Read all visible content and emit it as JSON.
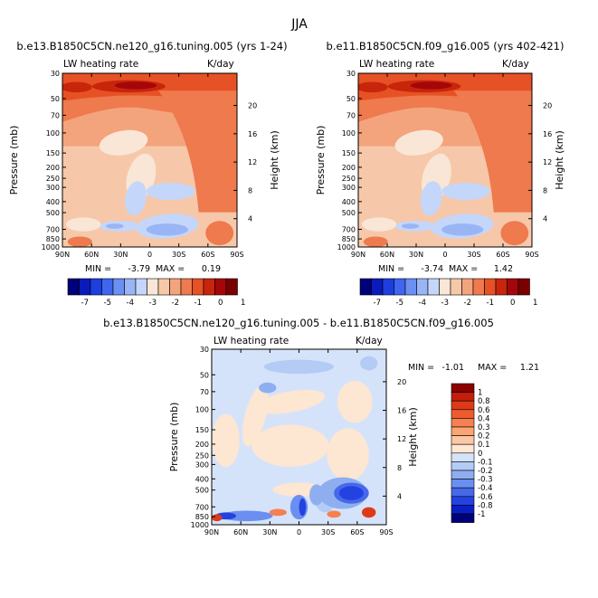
{
  "figure": {
    "season": "JJA",
    "units_label": "K/day",
    "var_label": "LW heating rate",
    "y_axis_label": "Pressure (mb)",
    "y2_axis_label": "Height (km)",
    "x_tick_labels": [
      "90N",
      "60N",
      "30N",
      "0",
      "30S",
      "60S",
      "90S"
    ],
    "p_tick_labels": [
      "30",
      "50",
      "70",
      "100",
      "150",
      "200",
      "250",
      "300",
      "400",
      "500",
      "700",
      "850",
      "1000"
    ],
    "h_tick_labels": [
      "20",
      "16",
      "12",
      "8",
      "4"
    ],
    "min_prefix": "MIN =",
    "max_prefix": "MAX ="
  },
  "chart_data": [
    {
      "type": "heatmap",
      "title": "b.e13.B1850C5CN.ne120_g16.tuning.005 (yrs 1-24)",
      "xlabel": "",
      "ylabel": "Pressure (mb)",
      "y2label": "Height (km)",
      "x": [
        90,
        60,
        30,
        0,
        -30,
        -60,
        -90
      ],
      "pressure_levels": [
        30,
        50,
        70,
        100,
        150,
        200,
        250,
        300,
        400,
        500,
        700,
        850,
        1000
      ],
      "height_km": [
        20,
        16,
        12,
        8,
        4
      ],
      "ylog": true,
      "min": "-3.79",
      "max": "0.19",
      "colorbar": {
        "orientation": "horizontal",
        "levels": [
          "-7",
          "-5",
          "-4",
          "-3",
          "-2",
          "-1",
          "0",
          "1"
        ],
        "colors": [
          "#00007a",
          "#0a1bbb",
          "#1e3fe0",
          "#3f66ee",
          "#6b8ff2",
          "#99b5f5",
          "#c4d6fa",
          "#f9e6d6",
          "#f6c8a9",
          "#f3a47c",
          "#ee7a4d",
          "#e65125",
          "#c7260a",
          "#a4060a",
          "#7a0000"
        ]
      }
    },
    {
      "type": "heatmap",
      "title": "b.e11.B1850C5CN.f09_g16.005 (yrs 402-421)",
      "xlabel": "",
      "ylabel": "Pressure (mb)",
      "y2label": "Height (km)",
      "x": [
        90,
        60,
        30,
        0,
        -30,
        -60,
        -90
      ],
      "pressure_levels": [
        30,
        50,
        70,
        100,
        150,
        200,
        250,
        300,
        400,
        500,
        700,
        850,
        1000
      ],
      "height_km": [
        20,
        16,
        12,
        8,
        4
      ],
      "ylog": true,
      "min": "-3.74",
      "max": "1.42",
      "colorbar": {
        "orientation": "horizontal",
        "levels": [
          "-7",
          "-5",
          "-4",
          "-3",
          "-2",
          "-1",
          "0",
          "1"
        ],
        "colors": [
          "#00007a",
          "#0a1bbb",
          "#1e3fe0",
          "#3f66ee",
          "#6b8ff2",
          "#99b5f5",
          "#c4d6fa",
          "#f9e6d6",
          "#f6c8a9",
          "#f3a47c",
          "#ee7a4d",
          "#e65125",
          "#c7260a",
          "#a4060a",
          "#7a0000"
        ]
      }
    },
    {
      "type": "heatmap",
      "title": "b.e13.B1850C5CN.ne120_g16.tuning.005 - b.e11.B1850C5CN.f09_g16.005",
      "xlabel": "",
      "ylabel": "Pressure (mb)",
      "y2label": "Height (km)",
      "x": [
        90,
        60,
        30,
        0,
        -30,
        -60,
        -90
      ],
      "pressure_levels": [
        30,
        50,
        70,
        100,
        150,
        200,
        250,
        300,
        400,
        500,
        700,
        850,
        1000
      ],
      "height_km": [
        20,
        16,
        12,
        8,
        4
      ],
      "ylog": true,
      "min": "-1.01",
      "max": "1.21",
      "colorbar": {
        "orientation": "vertical",
        "levels": [
          "1",
          "0.8",
          "0.6",
          "0.4",
          "0.3",
          "0.2",
          "0.1",
          "0",
          "-0.1",
          "-0.2",
          "-0.3",
          "-0.4",
          "-0.6",
          "-0.8",
          "-1"
        ],
        "colors": [
          "#8c0000",
          "#c41e0a",
          "#de3a18",
          "#ee5b30",
          "#f6804f",
          "#fba474",
          "#fcc7a4",
          "#fde6d2",
          "#d5e3fa",
          "#b4cbf5",
          "#8eaef0",
          "#6b8ff0",
          "#4669ea",
          "#2442e2",
          "#0a1fc2",
          "#00007a"
        ]
      }
    }
  ]
}
